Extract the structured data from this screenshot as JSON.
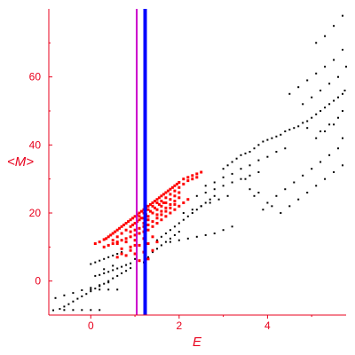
{
  "chart_data": {
    "type": "scatter",
    "xlabel": "E",
    "ylabel": "<M>",
    "xlim": [
      -0.95,
      5.78
    ],
    "ylim": [
      -10,
      80
    ],
    "x_ticks": [
      0,
      2,
      4
    ],
    "y_ticks": [
      0,
      20,
      40,
      60
    ],
    "grid": false,
    "axis_color": "#e8001c",
    "vertical_lines": [
      {
        "x": 1.04,
        "color": "#cc00cc"
      },
      {
        "x": 1.23,
        "color": "#0000ff"
      }
    ],
    "series": [
      {
        "color": "#000000",
        "points": [
          [
            -0.85,
            -8.6
          ],
          [
            -0.7,
            -8.2
          ],
          [
            -0.6,
            -7.5
          ],
          [
            -0.5,
            -6.8
          ],
          [
            -0.4,
            -6.0
          ],
          [
            -0.3,
            -5.2
          ],
          [
            -0.2,
            -4.5
          ],
          [
            -0.1,
            -3.8
          ],
          [
            0.0,
            -3.0
          ],
          [
            0.1,
            -2.2
          ],
          [
            0.2,
            -1.5
          ],
          [
            0.3,
            -0.8
          ],
          [
            0.4,
            0.0
          ],
          [
            0.5,
            0.8
          ],
          [
            0.6,
            1.5
          ],
          [
            0.7,
            2.3
          ],
          [
            0.8,
            3.0
          ],
          [
            0.9,
            3.8
          ],
          [
            -0.6,
            -8.5
          ],
          [
            -0.4,
            -8.5
          ],
          [
            -0.2,
            -8.5
          ],
          [
            0.0,
            -8.5
          ],
          [
            0.2,
            -8.5
          ],
          [
            -0.8,
            -5.0
          ],
          [
            -0.6,
            -4.2
          ],
          [
            -0.4,
            -3.5
          ],
          [
            -0.2,
            -2.7
          ],
          [
            0.0,
            -2.0
          ],
          [
            0.2,
            -1.2
          ],
          [
            0.4,
            -0.4
          ],
          [
            0.1,
            1.5
          ],
          [
            0.2,
            1.8
          ],
          [
            0.3,
            2.3
          ],
          [
            0.4,
            2.7
          ],
          [
            0.5,
            3.2
          ],
          [
            0.6,
            3.7
          ],
          [
            0.7,
            4.2
          ],
          [
            0.8,
            4.7
          ],
          [
            0.9,
            5.2
          ],
          [
            0.0,
            5.0
          ],
          [
            0.1,
            5.5
          ],
          [
            0.2,
            6.0
          ],
          [
            0.3,
            6.5
          ],
          [
            0.4,
            7.0
          ],
          [
            0.5,
            7.5
          ],
          [
            0.6,
            8.0
          ],
          [
            0.7,
            8.5
          ],
          [
            0.0,
            -2.5
          ],
          [
            0.2,
            -2.5
          ],
          [
            0.4,
            -2.5
          ],
          [
            0.6,
            -2.5
          ],
          [
            0.3,
            3.5
          ],
          [
            0.5,
            4.5
          ],
          [
            1.0,
            6.5
          ],
          [
            1.1,
            6.0
          ],
          [
            1.2,
            5.5
          ],
          [
            1.3,
            7.0
          ],
          [
            1.4,
            8.5
          ],
          [
            1.5,
            9.5
          ],
          [
            1.6,
            10.5
          ],
          [
            1.7,
            11.5
          ],
          [
            1.8,
            12.5
          ],
          [
            1.9,
            13.5
          ],
          [
            2.0,
            14.5
          ],
          [
            1.5,
            12.0
          ],
          [
            1.6,
            13.0
          ],
          [
            1.7,
            14.0
          ],
          [
            1.8,
            15.0
          ],
          [
            1.9,
            16.0
          ],
          [
            2.0,
            17.0
          ],
          [
            2.1,
            18.0
          ],
          [
            2.2,
            19.0
          ],
          [
            2.3,
            20.0
          ],
          [
            2.4,
            21.0
          ],
          [
            2.5,
            22.0
          ],
          [
            2.6,
            23.0
          ],
          [
            2.7,
            24.0
          ],
          [
            2.8,
            25.0
          ],
          [
            1.8,
            11.5
          ],
          [
            2.0,
            12.0
          ],
          [
            2.2,
            12.5
          ],
          [
            2.4,
            13.0
          ],
          [
            2.6,
            13.5
          ],
          [
            2.8,
            14.0
          ],
          [
            3.0,
            15.0
          ],
          [
            3.2,
            16.0
          ],
          [
            2.1,
            20.0
          ],
          [
            2.3,
            21.0
          ],
          [
            2.5,
            22.0
          ],
          [
            2.7,
            23.0
          ],
          [
            2.9,
            24.0
          ],
          [
            3.1,
            25.0
          ],
          [
            2.4,
            25.0
          ],
          [
            2.6,
            26.0
          ],
          [
            2.8,
            27.0
          ],
          [
            3.0,
            28.0
          ],
          [
            3.2,
            29.0
          ],
          [
            3.4,
            30.0
          ],
          [
            3.6,
            31.0
          ],
          [
            3.8,
            32.0
          ],
          [
            2.6,
            28.0
          ],
          [
            2.8,
            29.0
          ],
          [
            3.0,
            30.5
          ],
          [
            3.2,
            31.5
          ],
          [
            3.4,
            33.0
          ],
          [
            3.6,
            34.0
          ],
          [
            3.8,
            35.5
          ],
          [
            4.0,
            36.5
          ],
          [
            4.2,
            38.0
          ],
          [
            4.4,
            39.0
          ],
          [
            3.0,
            33.0
          ],
          [
            3.1,
            34.0
          ],
          [
            3.2,
            35.0
          ],
          [
            3.3,
            36.0
          ],
          [
            3.4,
            37.0
          ],
          [
            3.5,
            37.5
          ],
          [
            3.6,
            38.0
          ],
          [
            3.7,
            39.0
          ],
          [
            3.8,
            40.0
          ],
          [
            3.9,
            41.0
          ],
          [
            4.0,
            41.5
          ],
          [
            4.1,
            42.0
          ],
          [
            4.2,
            42.5
          ],
          [
            4.3,
            43.0
          ],
          [
            4.4,
            44.0
          ],
          [
            4.5,
            44.5
          ],
          [
            4.6,
            45.0
          ],
          [
            4.7,
            45.5
          ],
          [
            4.8,
            46.5
          ],
          [
            4.9,
            47.0
          ],
          [
            5.0,
            48.0
          ],
          [
            5.1,
            49.0
          ],
          [
            5.2,
            50.0
          ],
          [
            5.3,
            51.0
          ],
          [
            5.4,
            52.0
          ],
          [
            5.5,
            53.0
          ],
          [
            5.6,
            54.0
          ],
          [
            5.7,
            55.0
          ],
          [
            5.75,
            56.0
          ],
          [
            3.5,
            30.0
          ],
          [
            3.6,
            27.0
          ],
          [
            3.7,
            25.0
          ],
          [
            3.8,
            26.0
          ],
          [
            4.0,
            23.0
          ],
          [
            4.2,
            25.0
          ],
          [
            4.4,
            27.0
          ],
          [
            4.6,
            29.0
          ],
          [
            4.8,
            31.0
          ],
          [
            5.0,
            33.0
          ],
          [
            5.2,
            35.0
          ],
          [
            5.4,
            37.0
          ],
          [
            5.6,
            39.0
          ],
          [
            3.9,
            21.0
          ],
          [
            4.1,
            22.0
          ],
          [
            4.3,
            20.0
          ],
          [
            4.5,
            22.0
          ],
          [
            4.7,
            24.0
          ],
          [
            4.9,
            26.0
          ],
          [
            5.1,
            28.0
          ],
          [
            5.3,
            30.0
          ],
          [
            5.5,
            32.0
          ],
          [
            5.7,
            34.0
          ],
          [
            4.5,
            55.0
          ],
          [
            4.7,
            57.0
          ],
          [
            4.9,
            59.0
          ],
          [
            5.1,
            61.0
          ],
          [
            5.3,
            63.0
          ],
          [
            5.5,
            65.0
          ],
          [
            5.7,
            68.0
          ],
          [
            4.8,
            52.0
          ],
          [
            5.0,
            54.0
          ],
          [
            5.2,
            56.0
          ],
          [
            5.4,
            58.0
          ],
          [
            5.6,
            60.0
          ],
          [
            5.78,
            63.0
          ],
          [
            5.2,
            44.0
          ],
          [
            5.4,
            46.0
          ],
          [
            5.6,
            48.0
          ],
          [
            5.7,
            50.0
          ],
          [
            5.5,
            75.0
          ],
          [
            5.7,
            78.0
          ],
          [
            5.1,
            70.0
          ],
          [
            5.3,
            72.0
          ],
          [
            4.9,
            45.0
          ],
          [
            5.1,
            42.0
          ],
          [
            5.3,
            44.0
          ],
          [
            5.5,
            46.0
          ],
          [
            5.7,
            42.0
          ]
        ]
      },
      {
        "color": "#ff0000",
        "points": [
          [
            0.1,
            11.0
          ],
          [
            0.2,
            11.5
          ],
          [
            0.3,
            12.2
          ],
          [
            0.35,
            12.5
          ],
          [
            0.4,
            13.0
          ],
          [
            0.45,
            13.5
          ],
          [
            0.5,
            14.0
          ],
          [
            0.55,
            14.5
          ],
          [
            0.6,
            15.0
          ],
          [
            0.65,
            15.5
          ],
          [
            0.7,
            16.0
          ],
          [
            0.75,
            16.5
          ],
          [
            0.8,
            17.0
          ],
          [
            0.85,
            17.5
          ],
          [
            0.9,
            18.0
          ],
          [
            0.95,
            18.5
          ],
          [
            1.0,
            19.0
          ],
          [
            1.05,
            19.5
          ],
          [
            1.1,
            20.0
          ],
          [
            1.15,
            20.5
          ],
          [
            1.2,
            21.0
          ],
          [
            1.25,
            21.5
          ],
          [
            1.3,
            22.0
          ],
          [
            1.35,
            22.5
          ],
          [
            1.4,
            23.0
          ],
          [
            1.45,
            23.5
          ],
          [
            1.5,
            24.0
          ],
          [
            1.55,
            24.5
          ],
          [
            1.6,
            25.0
          ],
          [
            1.65,
            25.5
          ],
          [
            1.7,
            26.0
          ],
          [
            1.75,
            26.5
          ],
          [
            1.8,
            27.0
          ],
          [
            1.85,
            27.5
          ],
          [
            1.9,
            28.0
          ],
          [
            1.95,
            28.5
          ],
          [
            2.0,
            29.0
          ],
          [
            2.1,
            30.0
          ],
          [
            2.2,
            30.5
          ],
          [
            2.3,
            31.0
          ],
          [
            2.4,
            31.5
          ],
          [
            2.5,
            32.0
          ],
          [
            0.3,
            10.0
          ],
          [
            0.4,
            10.5
          ],
          [
            0.5,
            11.0
          ],
          [
            0.6,
            11.5
          ],
          [
            0.7,
            12.0
          ],
          [
            0.8,
            12.5
          ],
          [
            0.9,
            13.0
          ],
          [
            1.0,
            13.5
          ],
          [
            1.1,
            14.0
          ],
          [
            1.2,
            14.5
          ],
          [
            1.3,
            15.0
          ],
          [
            1.4,
            16.0
          ],
          [
            1.5,
            17.0
          ],
          [
            1.6,
            18.0
          ],
          [
            1.7,
            19.0
          ],
          [
            1.8,
            20.0
          ],
          [
            1.9,
            21.0
          ],
          [
            2.0,
            22.0
          ],
          [
            2.1,
            23.0
          ],
          [
            2.2,
            24.0
          ],
          [
            0.5,
            12.0
          ],
          [
            0.6,
            13.0
          ],
          [
            0.7,
            14.0
          ],
          [
            0.8,
            15.0
          ],
          [
            0.9,
            16.0
          ],
          [
            1.0,
            17.0
          ],
          [
            1.1,
            18.0
          ],
          [
            1.2,
            18.5
          ],
          [
            1.3,
            19.0
          ],
          [
            1.4,
            20.0
          ],
          [
            1.5,
            21.0
          ],
          [
            1.6,
            22.0
          ],
          [
            1.7,
            23.0
          ],
          [
            1.8,
            24.0
          ],
          [
            1.9,
            25.0
          ],
          [
            2.0,
            26.0
          ],
          [
            0.6,
            11.0
          ],
          [
            0.8,
            11.5
          ],
          [
            1.0,
            12.0
          ],
          [
            1.2,
            12.5
          ],
          [
            1.4,
            13.0
          ],
          [
            0.7,
            9.5
          ],
          [
            0.9,
            10.0
          ],
          [
            1.1,
            10.5
          ],
          [
            1.3,
            11.0
          ],
          [
            1.5,
            11.5
          ],
          [
            0.9,
            14.5
          ],
          [
            1.1,
            15.5
          ],
          [
            1.3,
            16.5
          ],
          [
            1.5,
            18.5
          ],
          [
            1.7,
            20.5
          ],
          [
            1.9,
            22.5
          ],
          [
            0.8,
            7.5
          ],
          [
            1.0,
            8.0
          ],
          [
            1.2,
            8.5
          ],
          [
            1.4,
            9.0
          ],
          [
            1.1,
            6.0
          ],
          [
            1.3,
            6.5
          ],
          [
            0.6,
            7.0
          ],
          [
            0.7,
            8.0
          ],
          [
            0.9,
            9.0
          ],
          [
            1.0,
            10.5
          ],
          [
            1.2,
            16.0
          ],
          [
            1.4,
            17.5
          ],
          [
            1.6,
            19.5
          ],
          [
            1.8,
            21.5
          ],
          [
            1.0,
            15.0
          ],
          [
            1.2,
            17.0
          ],
          [
            1.3,
            18.0
          ],
          [
            1.5,
            19.5
          ],
          [
            1.6,
            20.5
          ],
          [
            1.7,
            21.5
          ],
          [
            1.8,
            22.5
          ],
          [
            1.9,
            23.5
          ],
          [
            2.0,
            24.5
          ],
          [
            1.1,
            19.0
          ],
          [
            1.2,
            20.0
          ],
          [
            1.3,
            21.0
          ],
          [
            1.4,
            22.0
          ],
          [
            1.5,
            23.0
          ],
          [
            1.6,
            23.5
          ],
          [
            1.7,
            24.5
          ],
          [
            1.8,
            25.5
          ],
          [
            1.9,
            26.5
          ],
          [
            2.0,
            27.5
          ],
          [
            2.1,
            28.5
          ],
          [
            2.2,
            29.5
          ],
          [
            2.3,
            30.0
          ],
          [
            2.4,
            30.5
          ],
          [
            0.95,
            16.5
          ],
          [
            1.05,
            17.5
          ],
          [
            1.15,
            18.5
          ],
          [
            1.25,
            19.5
          ],
          [
            1.35,
            20.5
          ],
          [
            1.45,
            21.5
          ],
          [
            1.55,
            22.5
          ],
          [
            1.65,
            23.0
          ]
        ]
      }
    ]
  }
}
